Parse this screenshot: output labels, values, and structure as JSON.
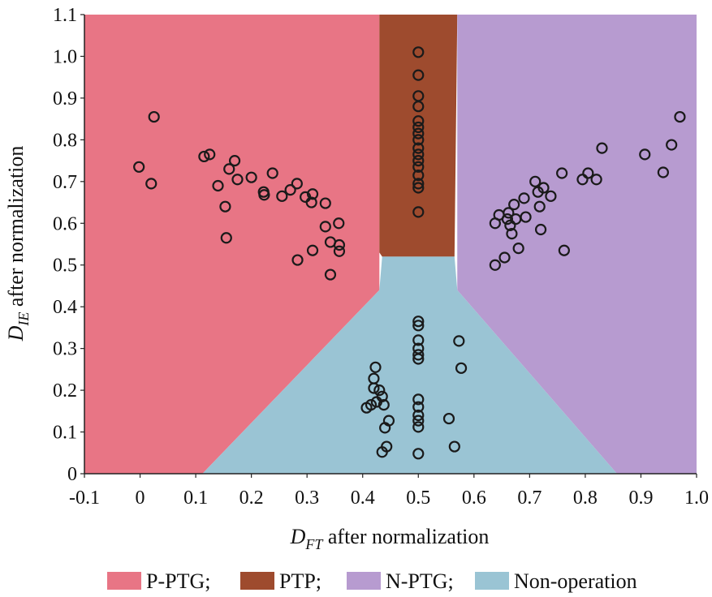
{
  "chart_data": {
    "type": "scatter",
    "xlabel": {
      "main": "D",
      "sub": "FT",
      "rest": " after normalization"
    },
    "ylabel": {
      "main": "D",
      "sub": "IE",
      "rest": " after normalization"
    },
    "xlim": [
      -0.1,
      1.0
    ],
    "ylim": [
      0,
      1.1
    ],
    "xticks": [
      "-0.1",
      "0",
      "0.1",
      "0.2",
      "0.3",
      "0.4",
      "0.5",
      "0.6",
      "0.7",
      "0.8",
      "0.9",
      "1.0"
    ],
    "yticks": [
      "0",
      "0.1",
      "0.2",
      "0.3",
      "0.4",
      "0.5",
      "0.6",
      "0.7",
      "0.8",
      "0.9",
      "1.0",
      "1.1"
    ],
    "regions": [
      {
        "name": "P-PTG",
        "color": "#e87585",
        "polygon": [
          [
            -0.1,
            0
          ],
          [
            0.112,
            0
          ],
          [
            0.43,
            0.44
          ],
          [
            0.43,
            1.1
          ],
          [
            -0.1,
            1.1
          ]
        ]
      },
      {
        "name": "PTP",
        "color": "#9e4b2e",
        "polygon": [
          [
            0.43,
            1.1
          ],
          [
            0.57,
            1.1
          ],
          [
            0.565,
            0.52
          ],
          [
            0.435,
            0.52
          ],
          [
            0.43,
            0.53
          ]
        ]
      },
      {
        "name": "N-PTG",
        "color": "#b79bd0",
        "polygon": [
          [
            0.57,
            1.1
          ],
          [
            1.0,
            1.1
          ],
          [
            1.0,
            0
          ],
          [
            0.857,
            0
          ],
          [
            0.57,
            0.44
          ]
        ]
      },
      {
        "name": "Non-operation",
        "color": "#9ac4d4",
        "polygon": [
          [
            0.112,
            0
          ],
          [
            0.857,
            0
          ],
          [
            0.57,
            0.44
          ],
          [
            0.565,
            0.52
          ],
          [
            0.435,
            0.52
          ],
          [
            0.43,
            0.44
          ]
        ]
      }
    ],
    "legend": [
      {
        "label": "P-PTG;",
        "color": "#e87585"
      },
      {
        "label": "PTP;",
        "color": "#9e4b2e"
      },
      {
        "label": "N-PTG;",
        "color": "#b79bd0"
      },
      {
        "label": "Non-operation",
        "color": "#9ac4d4"
      }
    ],
    "series": [
      {
        "points": [
          [
            -0.002,
            0.735
          ],
          [
            0.02,
            0.695
          ],
          [
            0.025,
            0.855
          ],
          [
            0.115,
            0.76
          ],
          [
            0.125,
            0.765
          ],
          [
            0.14,
            0.69
          ],
          [
            0.153,
            0.64
          ],
          [
            0.155,
            0.565
          ],
          [
            0.16,
            0.73
          ],
          [
            0.17,
            0.75
          ],
          [
            0.175,
            0.705
          ],
          [
            0.2,
            0.71
          ],
          [
            0.222,
            0.675
          ],
          [
            0.223,
            0.668
          ],
          [
            0.238,
            0.72
          ],
          [
            0.255,
            0.665
          ],
          [
            0.27,
            0.68
          ],
          [
            0.282,
            0.695
          ],
          [
            0.283,
            0.512
          ],
          [
            0.297,
            0.663
          ],
          [
            0.308,
            0.65
          ],
          [
            0.31,
            0.67
          ],
          [
            0.31,
            0.535
          ],
          [
            0.333,
            0.648
          ],
          [
            0.333,
            0.592
          ],
          [
            0.342,
            0.555
          ],
          [
            0.342,
            0.477
          ],
          [
            0.357,
            0.6
          ],
          [
            0.358,
            0.548
          ],
          [
            0.358,
            0.533
          ]
        ]
      },
      {
        "points": [
          [
            0.5,
            1.01
          ],
          [
            0.5,
            0.955
          ],
          [
            0.5,
            0.905
          ],
          [
            0.5,
            0.88
          ],
          [
            0.5,
            0.845
          ],
          [
            0.5,
            0.83
          ],
          [
            0.5,
            0.815
          ],
          [
            0.5,
            0.8
          ],
          [
            0.5,
            0.78
          ],
          [
            0.5,
            0.765
          ],
          [
            0.5,
            0.75
          ],
          [
            0.5,
            0.735
          ],
          [
            0.5,
            0.715
          ],
          [
            0.5,
            0.695
          ],
          [
            0.5,
            0.685
          ],
          [
            0.5,
            0.627
          ]
        ]
      },
      {
        "points": [
          [
            0.638,
            0.6
          ],
          [
            0.638,
            0.5
          ],
          [
            0.645,
            0.62
          ],
          [
            0.655,
            0.518
          ],
          [
            0.66,
            0.61
          ],
          [
            0.662,
            0.625
          ],
          [
            0.665,
            0.595
          ],
          [
            0.668,
            0.575
          ],
          [
            0.672,
            0.645
          ],
          [
            0.675,
            0.61
          ],
          [
            0.68,
            0.54
          ],
          [
            0.69,
            0.66
          ],
          [
            0.693,
            0.615
          ],
          [
            0.71,
            0.7
          ],
          [
            0.715,
            0.675
          ],
          [
            0.718,
            0.64
          ],
          [
            0.72,
            0.585
          ],
          [
            0.725,
            0.685
          ],
          [
            0.738,
            0.665
          ],
          [
            0.758,
            0.72
          ],
          [
            0.762,
            0.535
          ],
          [
            0.795,
            0.705
          ],
          [
            0.805,
            0.72
          ],
          [
            0.82,
            0.705
          ],
          [
            0.83,
            0.78
          ],
          [
            0.907,
            0.765
          ],
          [
            0.94,
            0.722
          ],
          [
            0.955,
            0.788
          ],
          [
            0.97,
            0.855
          ]
        ]
      },
      {
        "points": [
          [
            0.407,
            0.158
          ],
          [
            0.415,
            0.165
          ],
          [
            0.42,
            0.205
          ],
          [
            0.42,
            0.228
          ],
          [
            0.423,
            0.255
          ],
          [
            0.425,
            0.172
          ],
          [
            0.43,
            0.2
          ],
          [
            0.435,
            0.185
          ],
          [
            0.435,
            0.052
          ],
          [
            0.438,
            0.165
          ],
          [
            0.44,
            0.11
          ],
          [
            0.443,
            0.065
          ],
          [
            0.447,
            0.127
          ],
          [
            0.5,
            0.365
          ],
          [
            0.5,
            0.355
          ],
          [
            0.5,
            0.32
          ],
          [
            0.5,
            0.3
          ],
          [
            0.5,
            0.285
          ],
          [
            0.5,
            0.275
          ],
          [
            0.5,
            0.178
          ],
          [
            0.5,
            0.16
          ],
          [
            0.5,
            0.14
          ],
          [
            0.5,
            0.127
          ],
          [
            0.5,
            0.112
          ],
          [
            0.5,
            0.048
          ],
          [
            0.555,
            0.132
          ],
          [
            0.565,
            0.065
          ],
          [
            0.573,
            0.318
          ],
          [
            0.577,
            0.253
          ]
        ]
      }
    ]
  }
}
